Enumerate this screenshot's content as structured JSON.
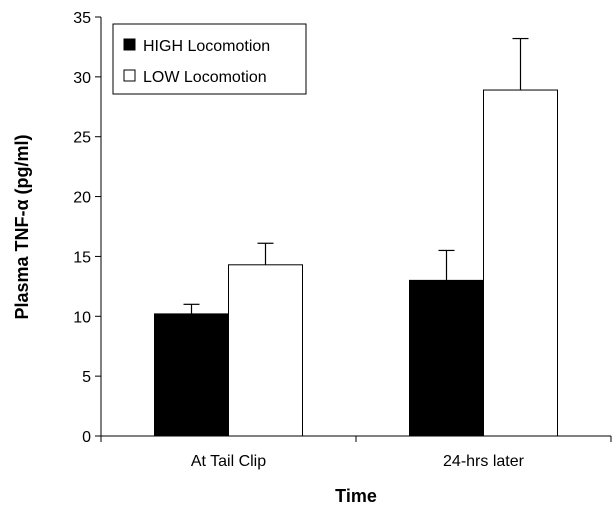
{
  "chart_data": {
    "type": "bar",
    "categories": [
      "At Tail Clip",
      "24-hrs later"
    ],
    "series": [
      {
        "name": "HIGH Locomotion",
        "values": [
          10.2,
          13.0
        ],
        "errors": [
          0.8,
          2.5
        ],
        "color": "#000000"
      },
      {
        "name": "LOW Locomotion",
        "values": [
          14.3,
          28.9
        ],
        "errors": [
          1.8,
          4.3
        ],
        "color": "#ffffff"
      }
    ],
    "xlabel": "Time",
    "ylabel": "Plasma TNF-α (pg/ml)",
    "ylim": [
      0,
      35
    ],
    "yticks": [
      "0",
      "5",
      "10",
      "15",
      "20",
      "25",
      "30",
      "35"
    ],
    "grid": false,
    "legend_position": "top-left"
  }
}
